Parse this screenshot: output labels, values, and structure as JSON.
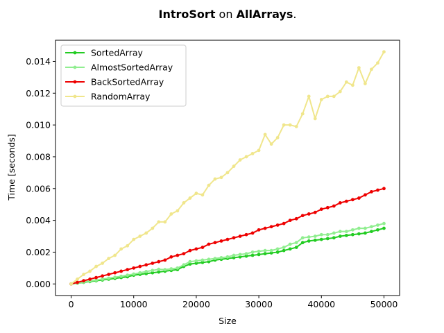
{
  "chart_data": {
    "type": "line",
    "title": {
      "bold1": "IntroSort",
      "mid": " on ",
      "bold2": "AllArrays",
      "end": "."
    },
    "xlabel": "Size",
    "ylabel": "Time [seconds]",
    "xlim": [
      -2500,
      52500
    ],
    "ylim": [
      -0.00073,
      0.01533
    ],
    "xticks": [
      0,
      10000,
      20000,
      30000,
      40000,
      50000
    ],
    "xtick_labels": [
      "0",
      "10000",
      "20000",
      "30000",
      "40000",
      "50000"
    ],
    "yticks": [
      0,
      0.002,
      0.004,
      0.006,
      0.008,
      0.01,
      0.012,
      0.014
    ],
    "ytick_labels": [
      "0.000",
      "0.002",
      "0.004",
      "0.006",
      "0.008",
      "0.010",
      "0.012",
      "0.014"
    ],
    "legend_position": "top-left",
    "x": [
      0,
      1000,
      2000,
      3000,
      4000,
      5000,
      6000,
      7000,
      8000,
      9000,
      10000,
      11000,
      12000,
      13000,
      14000,
      15000,
      16000,
      17000,
      18000,
      19000,
      20000,
      21000,
      22000,
      23000,
      24000,
      25000,
      26000,
      27000,
      28000,
      29000,
      30000,
      31000,
      32000,
      33000,
      34000,
      35000,
      36000,
      37000,
      38000,
      39000,
      40000,
      41000,
      42000,
      43000,
      44000,
      45000,
      46000,
      47000,
      48000,
      49000,
      50000
    ],
    "series": [
      {
        "name": "SortedArray",
        "color": "#22cc22",
        "values": [
          0.0,
          5e-05,
          0.0001,
          0.00015,
          0.0002,
          0.00025,
          0.0003,
          0.00035,
          0.0004,
          0.00045,
          0.00055,
          0.0006,
          0.00065,
          0.0007,
          0.00075,
          0.0008,
          0.00085,
          0.0009,
          0.0011,
          0.00125,
          0.0013,
          0.00135,
          0.0014,
          0.0015,
          0.00155,
          0.0016,
          0.00165,
          0.0017,
          0.00175,
          0.0018,
          0.00185,
          0.0019,
          0.00195,
          0.002,
          0.0021,
          0.0022,
          0.0023,
          0.0026,
          0.0027,
          0.00275,
          0.0028,
          0.00285,
          0.0029,
          0.003,
          0.00305,
          0.0031,
          0.00315,
          0.0032,
          0.0033,
          0.0034,
          0.0035
        ]
      },
      {
        "name": "AlmostSortedArray",
        "color": "#90ee90",
        "values": [
          0.0,
          6e-05,
          0.00012,
          0.00018,
          0.00024,
          0.0003,
          0.00036,
          0.00042,
          0.00048,
          0.00055,
          0.00062,
          0.0007,
          0.00078,
          0.00085,
          0.00092,
          0.0009,
          0.00095,
          0.001,
          0.0012,
          0.0014,
          0.00145,
          0.0015,
          0.00155,
          0.0016,
          0.00165,
          0.0017,
          0.0018,
          0.00185,
          0.0019,
          0.002,
          0.00205,
          0.0021,
          0.0021,
          0.0022,
          0.0023,
          0.0025,
          0.0026,
          0.0029,
          0.00295,
          0.003,
          0.0031,
          0.0031,
          0.0032,
          0.0033,
          0.0033,
          0.0034,
          0.0035,
          0.0035,
          0.0036,
          0.0037,
          0.0038
        ]
      },
      {
        "name": "BackSortedArray",
        "color": "#ee0000",
        "values": [
          0.0,
          0.0001,
          0.0002,
          0.0003,
          0.0004,
          0.0005,
          0.0006,
          0.0007,
          0.0008,
          0.0009,
          0.001,
          0.0011,
          0.0012,
          0.0013,
          0.0014,
          0.0015,
          0.0017,
          0.0018,
          0.0019,
          0.0021,
          0.0022,
          0.0023,
          0.0025,
          0.0026,
          0.0027,
          0.0028,
          0.0029,
          0.003,
          0.0031,
          0.0032,
          0.0034,
          0.0035,
          0.0036,
          0.0037,
          0.0038,
          0.004,
          0.0041,
          0.0043,
          0.0044,
          0.0045,
          0.0047,
          0.0048,
          0.0049,
          0.0051,
          0.0052,
          0.0053,
          0.0054,
          0.0056,
          0.0058,
          0.0059,
          0.006
        ]
      },
      {
        "name": "RandomArray",
        "color": "#f0e68c",
        "values": [
          0.0,
          0.0003,
          0.0006,
          0.0008,
          0.0011,
          0.0013,
          0.0016,
          0.0018,
          0.0022,
          0.0024,
          0.0028,
          0.003,
          0.0032,
          0.0035,
          0.0039,
          0.0039,
          0.0044,
          0.0046,
          0.0051,
          0.0054,
          0.0057,
          0.0056,
          0.0062,
          0.0066,
          0.0067,
          0.007,
          0.0074,
          0.0078,
          0.008,
          0.0082,
          0.0084,
          0.0094,
          0.0088,
          0.0092,
          0.01,
          0.01,
          0.0099,
          0.0107,
          0.0118,
          0.0104,
          0.0116,
          0.0118,
          0.0118,
          0.0121,
          0.0127,
          0.0125,
          0.0136,
          0.0126,
          0.0135,
          0.0139,
          0.0146
        ]
      }
    ]
  }
}
